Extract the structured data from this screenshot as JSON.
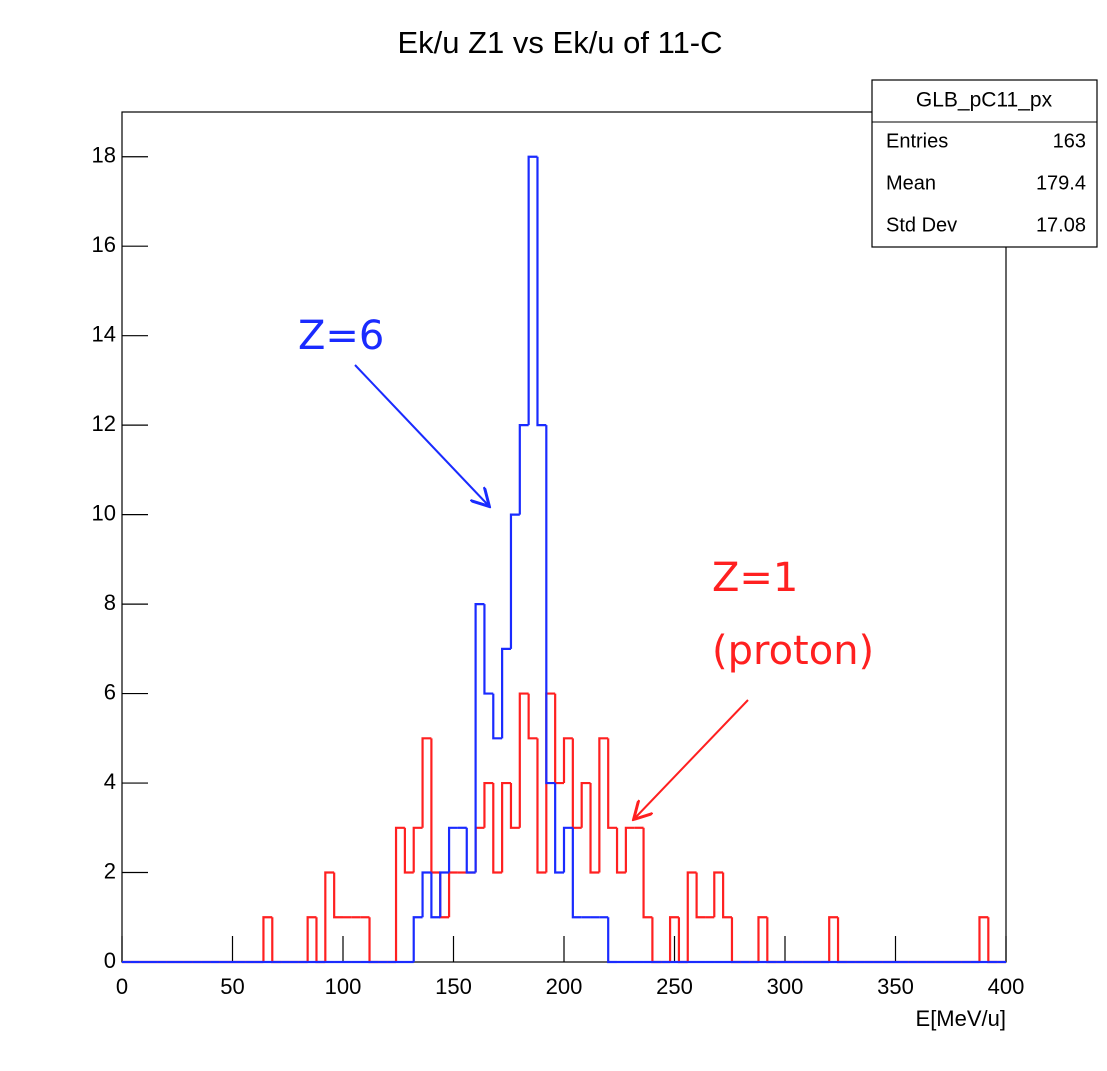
{
  "chart_data": {
    "type": "histogram",
    "title": "Ek/u Z1 vs Ek/u of 11-C",
    "x_label": "E[MeV/u]",
    "bins": [
      0,
      4,
      8,
      12,
      16,
      20,
      24,
      28,
      32,
      36,
      40,
      44,
      48,
      52,
      56,
      60,
      64,
      68,
      72,
      76,
      80,
      84,
      88,
      92,
      96,
      100,
      104,
      108,
      112,
      116,
      120,
      124,
      128,
      132,
      136,
      140,
      144,
      148,
      152,
      156,
      160,
      164,
      168,
      172,
      176,
      180,
      184,
      188,
      192,
      196,
      200,
      204,
      208,
      212,
      216,
      220,
      224,
      228,
      232,
      236,
      240,
      244,
      248,
      252,
      256,
      260,
      264,
      268,
      272,
      276,
      280,
      284,
      288,
      292,
      296,
      300,
      304,
      308,
      312,
      316,
      320,
      324,
      328,
      332,
      336,
      340,
      344,
      348,
      352,
      356,
      360,
      364,
      368,
      372,
      376,
      380,
      384,
      388,
      392,
      396,
      400
    ],
    "series": [
      {
        "name": "Z=1",
        "color": "#ff2020",
        "values": [
          0,
          0,
          0,
          0,
          0,
          0,
          0,
          0,
          0,
          0,
          0,
          0,
          0,
          0,
          0,
          0,
          1,
          0,
          0,
          0,
          0,
          1,
          0,
          2,
          1,
          1,
          1,
          1,
          0,
          0,
          0,
          3,
          2,
          3,
          5,
          2,
          1,
          2,
          2,
          2,
          3,
          4,
          2,
          4,
          3,
          6,
          5,
          2,
          6,
          4,
          5,
          3,
          4,
          2,
          5,
          3,
          2,
          3,
          3,
          1,
          0,
          0,
          1,
          0,
          2,
          1,
          1,
          2,
          1,
          0,
          0,
          0,
          1,
          0,
          0,
          0,
          0,
          0,
          0,
          0,
          1,
          0,
          0,
          0,
          0,
          0,
          0,
          0,
          0,
          0,
          0,
          0,
          0,
          0,
          0,
          0,
          0,
          1,
          0,
          0
        ]
      },
      {
        "name": "Z=6",
        "color": "#1a2bff",
        "values": [
          0,
          0,
          0,
          0,
          0,
          0,
          0,
          0,
          0,
          0,
          0,
          0,
          0,
          0,
          0,
          0,
          0,
          0,
          0,
          0,
          0,
          0,
          0,
          0,
          0,
          0,
          0,
          0,
          0,
          0,
          0,
          0,
          0,
          1,
          2,
          1,
          2,
          3,
          3,
          2,
          8,
          6,
          5,
          7,
          10,
          12,
          18,
          12,
          4,
          2,
          3,
          1,
          1,
          1,
          1,
          0,
          0,
          0,
          0,
          0,
          0,
          0,
          0,
          0,
          0,
          0,
          0,
          0,
          0,
          0,
          0,
          0,
          0,
          0,
          0,
          0,
          0,
          0,
          0,
          0,
          0,
          0,
          0,
          0,
          0,
          0,
          0,
          0,
          0,
          0,
          0,
          0,
          0,
          0,
          0,
          0,
          0,
          0,
          0,
          0
        ]
      }
    ],
    "xlim": [
      0,
      400
    ],
    "xticks": [
      0,
      50,
      100,
      150,
      200,
      250,
      300,
      350,
      400
    ],
    "ylim": [
      0,
      19
    ],
    "yticks": [
      0,
      2,
      4,
      6,
      8,
      10,
      12,
      14,
      16,
      18
    ],
    "stats": {
      "title": "GLB_pC11_px",
      "rows": [
        [
          "Entries",
          163
        ],
        [
          "Mean",
          179.4
        ],
        [
          "Std Dev",
          17.08
        ]
      ]
    },
    "annotations": [
      {
        "text": "Z=6",
        "color": "#1a2bff"
      },
      {
        "text": "Z=1",
        "color": "#ff2020"
      },
      {
        "text": "(proton)",
        "color": "#ff2020"
      }
    ]
  }
}
